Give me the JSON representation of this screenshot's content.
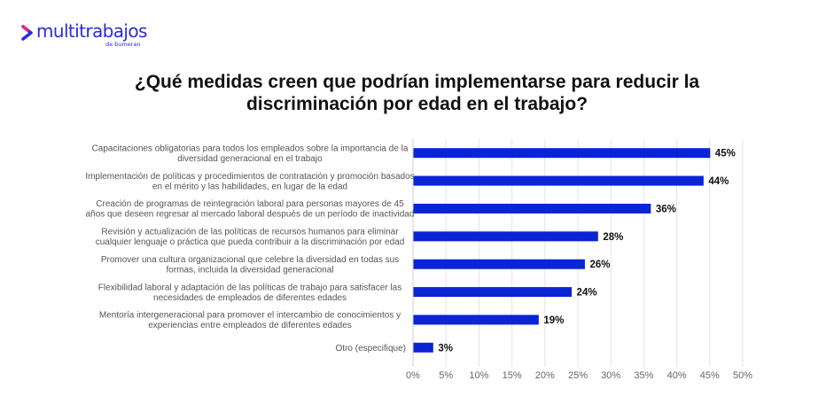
{
  "brand": {
    "name": "multitrabajos",
    "tagline": "de bumeran",
    "color": "#2a2ae0",
    "accent_color": "#e8247a"
  },
  "chart_data": {
    "type": "bar",
    "orientation": "horizontal",
    "title": "¿Qué medidas creen que podrían implementarse para reducir la discriminación por edad en el trabajo?",
    "title_lines": [
      "¿Qué medidas creen que podrían implementarse para reducir la",
      "discriminación por edad en el trabajo?"
    ],
    "xlabel": "",
    "ylabel": "",
    "xlim": [
      0,
      50
    ],
    "x_ticks": [
      0,
      5,
      10,
      15,
      20,
      25,
      30,
      35,
      40,
      45,
      50
    ],
    "x_tick_labels": [
      "0%",
      "5%",
      "10%",
      "15%",
      "20%",
      "25%",
      "30%",
      "35%",
      "40%",
      "45%",
      "50%"
    ],
    "grid": true,
    "bar_color": "#0b24d6",
    "categories": [
      [
        "Capacitaciones obligatorias para todos los empleados sobre la importancia de la",
        "diversidad generacional en el trabajo"
      ],
      [
        "Implementación de políticas y procedimientos de contratación y promoción basados",
        "en el mérito y las habilidades, en lugar de la edad"
      ],
      [
        "Creación de programas de reintegración laboral para personas mayores de 45",
        "años que deseen regresar al mercado laboral después de un período de inactividad"
      ],
      [
        "Revisión y actualización de las políticas de recursos humanos para eliminar",
        "cualquier lenguaje o práctica que pueda contribuir a la discriminación por edad"
      ],
      [
        "Promover una cultura organizacional que celebre la diversidad en todas sus",
        "formas, incluida la diversidad generacional"
      ],
      [
        "Flexibilidad laboral y adaptación de las políticas de trabajo para satisfacer las",
        "necesidades de empleados de diferentes edades"
      ],
      [
        "Mentoría intergeneracional para promover el intercambio de conocimientos y",
        "experiencias entre empleados de diferentes edades"
      ],
      [
        "Otro (especifique)"
      ]
    ],
    "values": [
      45,
      44,
      36,
      28,
      26,
      24,
      19,
      3
    ],
    "value_labels": [
      "45%",
      "44%",
      "36%",
      "28%",
      "26%",
      "24%",
      "19%",
      "3%"
    ]
  }
}
